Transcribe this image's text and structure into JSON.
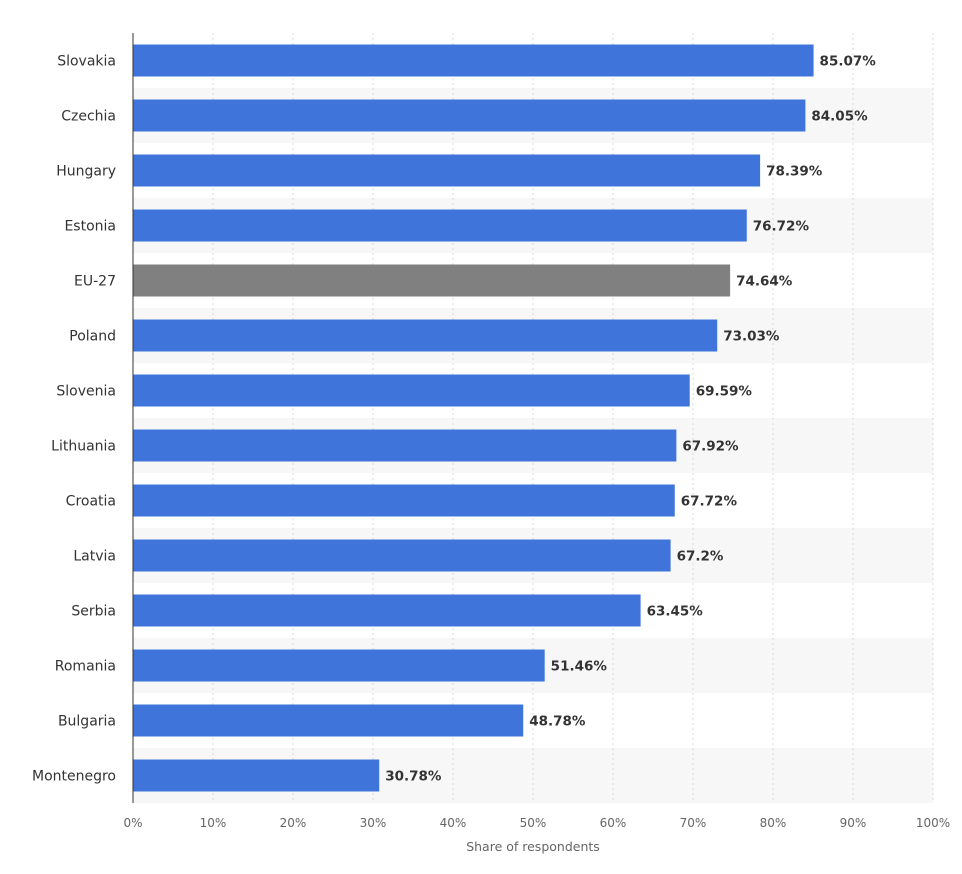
{
  "chart_data": {
    "type": "bar",
    "orientation": "horizontal",
    "categories": [
      "Slovakia",
      "Czechia",
      "Hungary",
      "Estonia",
      "EU-27",
      "Poland",
      "Slovenia",
      "Lithuania",
      "Croatia",
      "Latvia",
      "Serbia",
      "Romania",
      "Bulgaria",
      "Montenegro"
    ],
    "values": [
      85.07,
      84.05,
      78.39,
      76.72,
      74.64,
      73.03,
      69.59,
      67.92,
      67.72,
      67.2,
      63.45,
      51.46,
      48.78,
      30.78
    ],
    "value_labels": [
      "85.07%",
      "84.05%",
      "78.39%",
      "76.72%",
      "74.64%",
      "73.03%",
      "69.59%",
      "67.92%",
      "67.72%",
      "67.2%",
      "63.45%",
      "51.46%",
      "48.78%",
      "30.78%"
    ],
    "highlight_category": "EU-27",
    "xlabel": "Share of respondents",
    "ylabel": "",
    "xlim": [
      0,
      100
    ],
    "x_ticks": [
      "0%",
      "10%",
      "20%",
      "30%",
      "40%",
      "50%",
      "60%",
      "70%",
      "80%",
      "90%",
      "100%"
    ],
    "grid": true,
    "colors": {
      "bar": "#3f74db",
      "highlight": "#808080",
      "band": "#f7f7f7",
      "grid": "#d8d8d8"
    }
  }
}
